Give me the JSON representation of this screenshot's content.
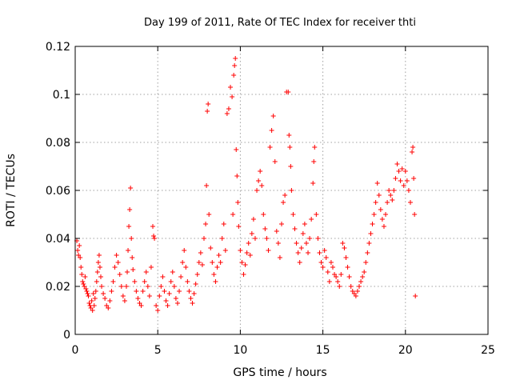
{
  "chart_data": {
    "type": "scatter",
    "title": "Day 199 of 2011, Rate Of TEC Index for receiver thti",
    "xlabel": "GPS time / hours",
    "ylabel": "ROTI / TECUs",
    "xlim": [
      0,
      25
    ],
    "ylim": [
      0,
      0.12
    ],
    "xticks": [
      0,
      5,
      10,
      15,
      20,
      25
    ],
    "xtick_labels": [
      "0",
      "5",
      "10",
      "15",
      "20",
      "25"
    ],
    "yticks": [
      0,
      0.02,
      0.04,
      0.06,
      0.08,
      0.1,
      0.12
    ],
    "ytick_labels": [
      "0",
      "0.02",
      "0.04",
      "0.06",
      "0.08",
      "0.1",
      "0.12"
    ],
    "grid": true,
    "marker": "+",
    "color": "#ff0000",
    "series": [
      {
        "name": "ROTI",
        "points": [
          [
            0.1,
            0.039
          ],
          [
            0.15,
            0.035
          ],
          [
            0.2,
            0.033
          ],
          [
            0.25,
            0.037
          ],
          [
            0.3,
            0.032
          ],
          [
            0.35,
            0.028
          ],
          [
            0.4,
            0.025
          ],
          [
            0.45,
            0.022
          ],
          [
            0.5,
            0.021
          ],
          [
            0.55,
            0.02
          ],
          [
            0.6,
            0.024
          ],
          [
            0.65,
            0.019
          ],
          [
            0.7,
            0.018
          ],
          [
            0.75,
            0.017
          ],
          [
            0.8,
            0.016
          ],
          [
            0.85,
            0.013
          ],
          [
            0.9,
            0.012
          ],
          [
            0.95,
            0.011
          ],
          [
            1.0,
            0.014
          ],
          [
            1.05,
            0.01
          ],
          [
            1.1,
            0.017
          ],
          [
            1.15,
            0.012
          ],
          [
            1.2,
            0.015
          ],
          [
            1.25,
            0.018
          ],
          [
            1.3,
            0.022
          ],
          [
            1.35,
            0.026
          ],
          [
            1.4,
            0.03
          ],
          [
            1.45,
            0.033
          ],
          [
            1.5,
            0.028
          ],
          [
            1.55,
            0.024
          ],
          [
            1.6,
            0.02
          ],
          [
            1.7,
            0.017
          ],
          [
            1.8,
            0.015
          ],
          [
            1.9,
            0.012
          ],
          [
            2.0,
            0.011
          ],
          [
            2.1,
            0.014
          ],
          [
            2.2,
            0.018
          ],
          [
            2.3,
            0.022
          ],
          [
            2.4,
            0.028
          ],
          [
            2.5,
            0.033
          ],
          [
            2.6,
            0.03
          ],
          [
            2.7,
            0.025
          ],
          [
            2.8,
            0.02
          ],
          [
            2.9,
            0.016
          ],
          [
            3.0,
            0.014
          ],
          [
            3.1,
            0.02
          ],
          [
            3.15,
            0.026
          ],
          [
            3.2,
            0.035
          ],
          [
            3.25,
            0.045
          ],
          [
            3.3,
            0.052
          ],
          [
            3.35,
            0.061
          ],
          [
            3.4,
            0.04
          ],
          [
            3.45,
            0.032
          ],
          [
            3.5,
            0.027
          ],
          [
            3.6,
            0.022
          ],
          [
            3.7,
            0.018
          ],
          [
            3.8,
            0.015
          ],
          [
            3.9,
            0.013
          ],
          [
            4.0,
            0.012
          ],
          [
            4.1,
            0.018
          ],
          [
            4.2,
            0.022
          ],
          [
            4.3,
            0.026
          ],
          [
            4.4,
            0.02
          ],
          [
            4.5,
            0.016
          ],
          [
            4.6,
            0.028
          ],
          [
            4.7,
            0.045
          ],
          [
            4.75,
            0.041
          ],
          [
            4.8,
            0.04
          ],
          [
            4.9,
            0.012
          ],
          [
            5.0,
            0.01
          ],
          [
            5.1,
            0.016
          ],
          [
            5.2,
            0.02
          ],
          [
            5.3,
            0.024
          ],
          [
            5.4,
            0.018
          ],
          [
            5.5,
            0.014
          ],
          [
            5.6,
            0.012
          ],
          [
            5.7,
            0.017
          ],
          [
            5.8,
            0.022
          ],
          [
            5.9,
            0.026
          ],
          [
            6.0,
            0.02
          ],
          [
            6.1,
            0.015
          ],
          [
            6.2,
            0.013
          ],
          [
            6.3,
            0.018
          ],
          [
            6.4,
            0.024
          ],
          [
            6.5,
            0.03
          ],
          [
            6.6,
            0.035
          ],
          [
            6.7,
            0.028
          ],
          [
            6.8,
            0.022
          ],
          [
            6.9,
            0.018
          ],
          [
            7.0,
            0.015
          ],
          [
            7.1,
            0.013
          ],
          [
            7.2,
            0.017
          ],
          [
            7.3,
            0.021
          ],
          [
            7.4,
            0.025
          ],
          [
            7.5,
            0.03
          ],
          [
            7.6,
            0.034
          ],
          [
            7.7,
            0.029
          ],
          [
            7.8,
            0.04
          ],
          [
            7.9,
            0.046
          ],
          [
            7.95,
            0.062
          ],
          [
            8.0,
            0.093
          ],
          [
            8.05,
            0.096
          ],
          [
            8.1,
            0.05
          ],
          [
            8.2,
            0.036
          ],
          [
            8.3,
            0.03
          ],
          [
            8.4,
            0.025
          ],
          [
            8.5,
            0.022
          ],
          [
            8.6,
            0.028
          ],
          [
            8.7,
            0.033
          ],
          [
            8.8,
            0.03
          ],
          [
            8.9,
            0.04
          ],
          [
            9.0,
            0.046
          ],
          [
            9.1,
            0.035
          ],
          [
            9.2,
            0.092
          ],
          [
            9.3,
            0.094
          ],
          [
            9.4,
            0.103
          ],
          [
            9.5,
            0.099
          ],
          [
            9.55,
            0.05
          ],
          [
            9.6,
            0.108
          ],
          [
            9.65,
            0.112
          ],
          [
            9.7,
            0.115
          ],
          [
            9.75,
            0.077
          ],
          [
            9.8,
            0.066
          ],
          [
            9.85,
            0.055
          ],
          [
            9.9,
            0.045
          ],
          [
            10.0,
            0.035
          ],
          [
            10.1,
            0.03
          ],
          [
            10.2,
            0.025
          ],
          [
            10.3,
            0.029
          ],
          [
            10.4,
            0.034
          ],
          [
            10.5,
            0.038
          ],
          [
            10.6,
            0.033
          ],
          [
            10.7,
            0.042
          ],
          [
            10.8,
            0.048
          ],
          [
            10.9,
            0.04
          ],
          [
            11.0,
            0.06
          ],
          [
            11.1,
            0.064
          ],
          [
            11.2,
            0.068
          ],
          [
            11.3,
            0.062
          ],
          [
            11.4,
            0.05
          ],
          [
            11.5,
            0.044
          ],
          [
            11.6,
            0.04
          ],
          [
            11.7,
            0.035
          ],
          [
            11.8,
            0.078
          ],
          [
            11.9,
            0.085
          ],
          [
            12.0,
            0.091
          ],
          [
            12.1,
            0.072
          ],
          [
            12.2,
            0.043
          ],
          [
            12.3,
            0.038
          ],
          [
            12.4,
            0.032
          ],
          [
            12.5,
            0.046
          ],
          [
            12.6,
            0.055
          ],
          [
            12.7,
            0.058
          ],
          [
            12.8,
            0.101
          ],
          [
            12.9,
            0.101
          ],
          [
            12.95,
            0.083
          ],
          [
            13.0,
            0.078
          ],
          [
            13.05,
            0.07
          ],
          [
            13.1,
            0.06
          ],
          [
            13.2,
            0.05
          ],
          [
            13.3,
            0.044
          ],
          [
            13.4,
            0.038
          ],
          [
            13.5,
            0.034
          ],
          [
            13.6,
            0.03
          ],
          [
            13.7,
            0.036
          ],
          [
            13.8,
            0.042
          ],
          [
            13.9,
            0.046
          ],
          [
            14.0,
            0.038
          ],
          [
            14.1,
            0.034
          ],
          [
            14.2,
            0.04
          ],
          [
            14.3,
            0.048
          ],
          [
            14.4,
            0.063
          ],
          [
            14.45,
            0.072
          ],
          [
            14.5,
            0.078
          ],
          [
            14.6,
            0.05
          ],
          [
            14.7,
            0.04
          ],
          [
            14.8,
            0.034
          ],
          [
            14.9,
            0.03
          ],
          [
            15.0,
            0.028
          ],
          [
            15.1,
            0.035
          ],
          [
            15.2,
            0.032
          ],
          [
            15.3,
            0.026
          ],
          [
            15.4,
            0.022
          ],
          [
            15.5,
            0.03
          ],
          [
            15.6,
            0.028
          ],
          [
            15.7,
            0.025
          ],
          [
            15.8,
            0.024
          ],
          [
            15.9,
            0.022
          ],
          [
            16.0,
            0.02
          ],
          [
            16.1,
            0.025
          ],
          [
            16.2,
            0.038
          ],
          [
            16.3,
            0.036
          ],
          [
            16.4,
            0.032
          ],
          [
            16.5,
            0.028
          ],
          [
            16.6,
            0.024
          ],
          [
            16.7,
            0.02
          ],
          [
            16.8,
            0.018
          ],
          [
            16.9,
            0.017
          ],
          [
            17.0,
            0.016
          ],
          [
            17.1,
            0.018
          ],
          [
            17.2,
            0.02
          ],
          [
            17.3,
            0.022
          ],
          [
            17.4,
            0.024
          ],
          [
            17.5,
            0.026
          ],
          [
            17.6,
            0.03
          ],
          [
            17.7,
            0.034
          ],
          [
            17.8,
            0.038
          ],
          [
            17.9,
            0.042
          ],
          [
            18.0,
            0.046
          ],
          [
            18.1,
            0.05
          ],
          [
            18.2,
            0.055
          ],
          [
            18.3,
            0.063
          ],
          [
            18.4,
            0.058
          ],
          [
            18.5,
            0.052
          ],
          [
            18.6,
            0.048
          ],
          [
            18.7,
            0.045
          ],
          [
            18.8,
            0.05
          ],
          [
            18.9,
            0.055
          ],
          [
            19.0,
            0.06
          ],
          [
            19.1,
            0.058
          ],
          [
            19.2,
            0.056
          ],
          [
            19.3,
            0.06
          ],
          [
            19.4,
            0.065
          ],
          [
            19.5,
            0.071
          ],
          [
            19.6,
            0.068
          ],
          [
            19.7,
            0.064
          ],
          [
            19.8,
            0.069
          ],
          [
            19.9,
            0.062
          ],
          [
            20.0,
            0.068
          ],
          [
            20.1,
            0.064
          ],
          [
            20.2,
            0.06
          ],
          [
            20.3,
            0.055
          ],
          [
            20.4,
            0.076
          ],
          [
            20.45,
            0.078
          ],
          [
            20.5,
            0.065
          ],
          [
            20.55,
            0.05
          ],
          [
            20.6,
            0.016
          ]
        ]
      }
    ]
  }
}
